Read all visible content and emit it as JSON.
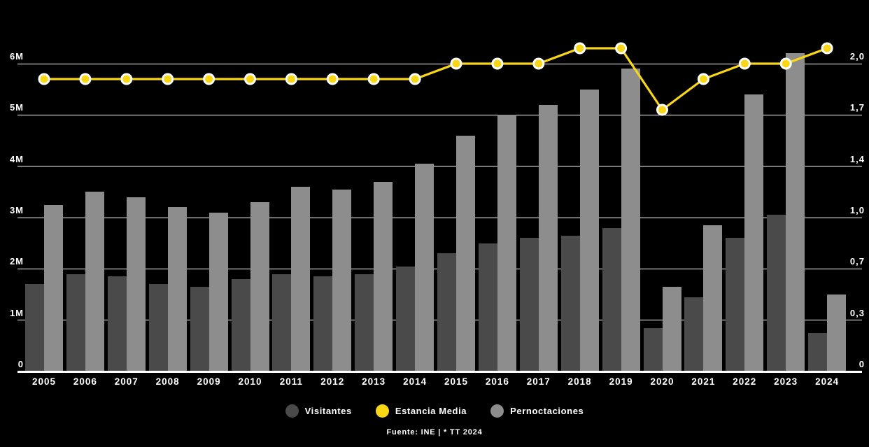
{
  "legend": {
    "items": [
      {
        "label": "Visitantes",
        "color": "#4a4a4a"
      },
      {
        "label": "Estancia Media",
        "color": "#f9d616"
      },
      {
        "label": "Pernoctaciones",
        "color": "#8d8d8d"
      }
    ]
  },
  "footer": {
    "source": "Fuente: INE | * TT 2024"
  },
  "chart_data": {
    "type": "combo-bar-line",
    "title": "",
    "background": "#000000",
    "grid_color": "#ffffff",
    "legend_position": "bottom",
    "categories": [
      "2005",
      "2006",
      "2007",
      "2008",
      "2009",
      "2010",
      "2011",
      "2012",
      "2013",
      "2014",
      "2015",
      "2016",
      "2017",
      "2018",
      "2019",
      "2020",
      "2021",
      "2022",
      "2023",
      "2024"
    ],
    "series": [
      {
        "name": "Visitantes",
        "type": "bar",
        "axis": "left",
        "unit": "millones",
        "color": "#4a4a4a",
        "values": [
          1.7,
          1.9,
          1.85,
          1.7,
          1.65,
          1.8,
          1.9,
          1.85,
          1.9,
          2.05,
          2.3,
          2.5,
          2.6,
          2.65,
          2.8,
          0.85,
          1.45,
          2.6,
          3.05,
          0.75
        ]
      },
      {
        "name": "Pernoctaciones",
        "type": "bar",
        "axis": "left",
        "unit": "millones",
        "color": "#8d8d8d",
        "values": [
          3.25,
          3.5,
          3.4,
          3.2,
          3.1,
          3.3,
          3.6,
          3.55,
          3.7,
          4.05,
          4.6,
          5.0,
          5.2,
          5.5,
          5.9,
          1.65,
          2.85,
          5.4,
          6.2,
          1.5
        ]
      },
      {
        "name": "Estancia Media",
        "type": "line",
        "axis": "right",
        "color": "#f9d616",
        "point_fill": "#f9d616",
        "point_ring": "#ffffff",
        "values": [
          1.9,
          1.9,
          1.9,
          1.9,
          1.9,
          1.9,
          1.9,
          1.9,
          1.9,
          1.9,
          2.0,
          2.0,
          2.0,
          2.1,
          2.1,
          1.7,
          1.9,
          2.0,
          2.0,
          2.1
        ]
      }
    ],
    "left_axis": {
      "min": 0,
      "max": 6,
      "unit": "millones",
      "tick_suffix": "M"
    },
    "right_axis": {
      "min": 0,
      "max": 2.0
    },
    "gridlines": [
      {
        "value": 0,
        "left": "0",
        "right": "0"
      },
      {
        "value": 1,
        "left": "1M",
        "right": "0,3"
      },
      {
        "value": 2,
        "left": "2M",
        "right": "0,7"
      },
      {
        "value": 3,
        "left": "3M",
        "right": "1,0"
      },
      {
        "value": 4,
        "left": "4M",
        "right": "1,4"
      },
      {
        "value": 5,
        "left": "5M",
        "right": "1,7"
      },
      {
        "value": 6,
        "left": "6M",
        "right": "2,0"
      }
    ]
  }
}
